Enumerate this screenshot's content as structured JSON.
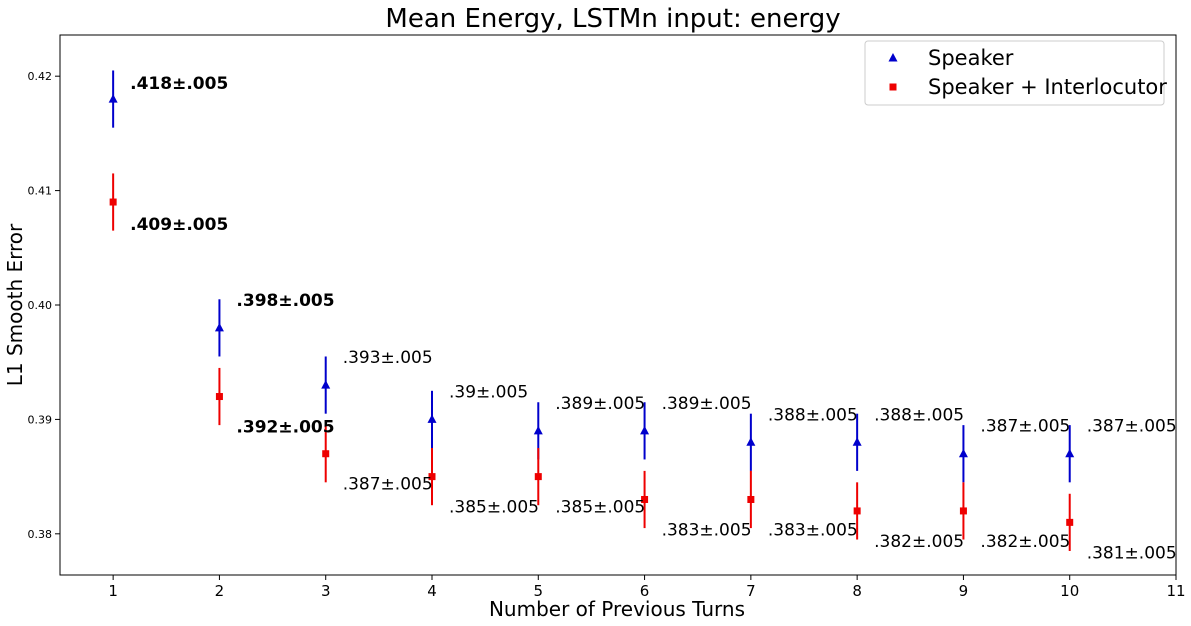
{
  "chart_data": {
    "type": "scatter",
    "title": "Mean Energy, LSTMn input: energy",
    "xlabel": "Number of Previous Turns",
    "ylabel": "L1 Smooth Error",
    "xlim": [
      0.5,
      11
    ],
    "ylim": [
      0.3764,
      0.4236
    ],
    "xticks": [
      "1",
      "2",
      "3",
      "4",
      "5",
      "6",
      "7",
      "8",
      "9",
      "10",
      "11"
    ],
    "yticks": [
      "0.38",
      "0.39",
      "0.40",
      "0.41",
      "0.42"
    ],
    "grid": false,
    "legend_position": "top-right",
    "x": [
      1,
      2,
      3,
      4,
      5,
      6,
      7,
      8,
      9,
      10
    ],
    "series": [
      {
        "name": "Speaker",
        "color": "#0000cc",
        "marker": "triangle",
        "values": [
          0.418,
          0.398,
          0.393,
          0.39,
          0.389,
          0.389,
          0.388,
          0.388,
          0.387,
          0.387
        ],
        "error": 0.0025,
        "labels": [
          ".418±.005",
          ".398±.005",
          ".393±.005",
          ".39±.005",
          ".389±.005",
          ".389±.005",
          ".388±.005",
          ".388±.005",
          ".387±.005",
          ".387±.005"
        ],
        "bold": [
          true,
          true,
          false,
          false,
          false,
          false,
          false,
          false,
          false,
          false
        ]
      },
      {
        "name": "Speaker + Interlocutor",
        "color": "#ee0000",
        "marker": "square",
        "values": [
          0.409,
          0.392,
          0.387,
          0.385,
          0.385,
          0.383,
          0.383,
          0.382,
          0.382,
          0.381
        ],
        "error": 0.0025,
        "labels": [
          ".409±.005",
          ".392±.005",
          ".387±.005",
          ".385±.005",
          ".385±.005",
          ".383±.005",
          ".383±.005",
          ".382±.005",
          ".382±.005",
          ".381±.005"
        ],
        "bold": [
          true,
          true,
          false,
          false,
          false,
          false,
          false,
          false,
          false,
          false
        ]
      }
    ]
  }
}
